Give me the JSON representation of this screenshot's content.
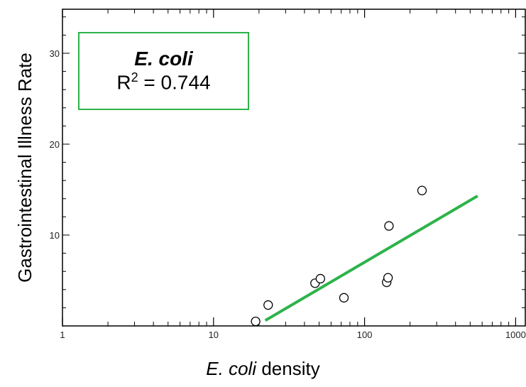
{
  "chart_data": {
    "type": "scatter",
    "x_scale": "log",
    "xlim": [
      1,
      1000
    ],
    "ylim": [
      0,
      35
    ],
    "x_ticks": [
      {
        "value": 1,
        "label": "1"
      },
      {
        "value": 10,
        "label": "10"
      },
      {
        "value": 100,
        "label": "100"
      },
      {
        "value": 1000,
        "label": "1000"
      }
    ],
    "y_ticks": [
      {
        "value": 10,
        "label": "10"
      },
      {
        "value": 20,
        "label": "20"
      },
      {
        "value": 30,
        "label": "30"
      }
    ],
    "xlabel_italic": "E. coli",
    "xlabel_rest": " density",
    "ylabel": "Gastrointestinal Illness Rate",
    "legend": {
      "title": "E. coli",
      "r2_prefix": "R",
      "r2_sup": "2",
      "r2_value": " = 0.744"
    },
    "points": [
      {
        "x": 19,
        "y": 0.5
      },
      {
        "x": 23,
        "y": 2.3
      },
      {
        "x": 47,
        "y": 4.7
      },
      {
        "x": 51,
        "y": 5.2
      },
      {
        "x": 73,
        "y": 3.1
      },
      {
        "x": 140,
        "y": 4.8
      },
      {
        "x": 143,
        "y": 5.3
      },
      {
        "x": 145,
        "y": 11.0
      },
      {
        "x": 240,
        "y": 14.9
      }
    ],
    "trendline": {
      "x": [
        22,
        560
      ],
      "y": [
        0.6,
        14.3
      ]
    },
    "colors": {
      "trendline": "#2db34a",
      "legend_border": "#2db34a",
      "marker_stroke": "#000000",
      "axis": "#000000"
    }
  }
}
